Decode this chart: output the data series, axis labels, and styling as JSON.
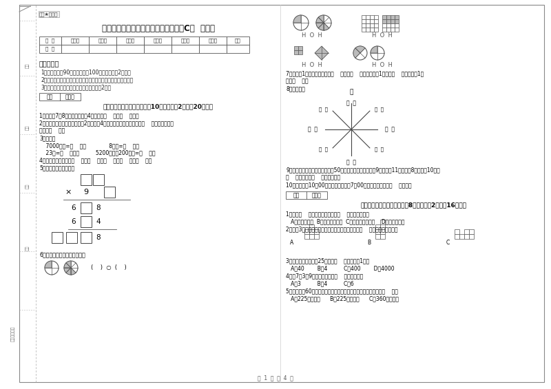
{
  "title": "外研版三年级数学下学期能力检测试题C卷  含答案",
  "subtitle": "题图★自用图",
  "bg_color": "#ffffff",
  "table_headers": [
    "题  号",
    "填空题",
    "选择题",
    "判断题",
    "计算题",
    "综合题",
    "应用题",
    "总分"
  ],
  "table_row": [
    "得  分",
    "",
    "",
    "",
    "",
    "",
    "",
    ""
  ],
  "section1_title": "考试须知：",
  "section1_items": [
    "1．考试时间：90分钟，满分为100分（含卷面分2分）。",
    "2．请首先按要求在试卷的指定位置填写您的姓名、班级、学号。",
    "3．不要在试卷上乱写乱画，卷面不整洁扣2分。"
  ],
  "section2_title": "一、用心思考，正确填空（共10小题，每题2分，共20分）。",
  "s2_item1": "1．时针在7和8之间，分针指向4，这时是（    ）时（    ）分。",
  "s2_item2a": "2．劳动课上做纸花，红红做了2朵纸花，4朵菱花，红花占纸花总数的（    ），蓝花占纸花",
  "s2_item2b": "总数的（    ）。",
  "s2_item3": "3．换算：",
  "s2_item3a": "    7000千克=（    ）吨              8千克=（    ）克",
  "s2_item3b": "    23吨=（    ）千克          5200千克－200千克=（    ）吨",
  "s2_item4": "4．常用的长度单位有（    ）、（    ）、（    ）、（    ）、（    ）。",
  "s2_item5": "5．在里填上适当的数。",
  "section3_title": "6．看图写分数，并比较大小。",
  "section4_title": "二、反复比较，慎重选择（共8小题，每题2分，共16分）。",
  "s4_item1a": "1．明天（    ）会下雨，今天下午（    ）游遍全世界。",
  "s4_item1b": "   A．一定，可能  B．可能，不可能  C．不可能，不可能    D．可能，可能",
  "s4_item2": "2．下列3个图形中，每个小正方形都一样大，那么（    ）图形的周长最长。",
  "s4_item3a": "3．平均每个同学体重25千克，（    ）名同学重1吨。",
  "s4_item3b": "   A．40        B．4          C．400        D．4000",
  "s4_item4a": "4．用7，3，9三个数字可组成（    ）个三位数。",
  "s4_item4b": "   A．3          B．4          C．6",
  "s4_item5a": "5．把一根长60厘米的铁丝围成一个正方形，这个正方形的面积是（    ）。",
  "s4_item5b": "   A．225平方分米      B．225平方厘米      C．360平方厘米",
  "r_item7a": "7．分针走1小格，秒针正好走（    ），是（    ）秒，分针走1大格是（    ），时针走1大",
  "r_item7b": "格是（    ）。",
  "r_item8": "8．填一填。",
  "r_item9a": "9．体育老师对第一小组同学进行50米追测试，成绩如下小红9秒，小丽11秒，小明8秒，小军10秒，",
  "r_item9b": "（    ）跑得最快（    ）跑得最慢。",
  "r_item10": "10．小林晚上10：00睡觉，第二天早上7：00起床，他一共睡了（    ）小时。",
  "footer": "第  1  页  共  4  页",
  "margin_text": "学号（测评）",
  "left_margin_labels": [
    "学校",
    "班级",
    "姓名",
    "学号"
  ]
}
